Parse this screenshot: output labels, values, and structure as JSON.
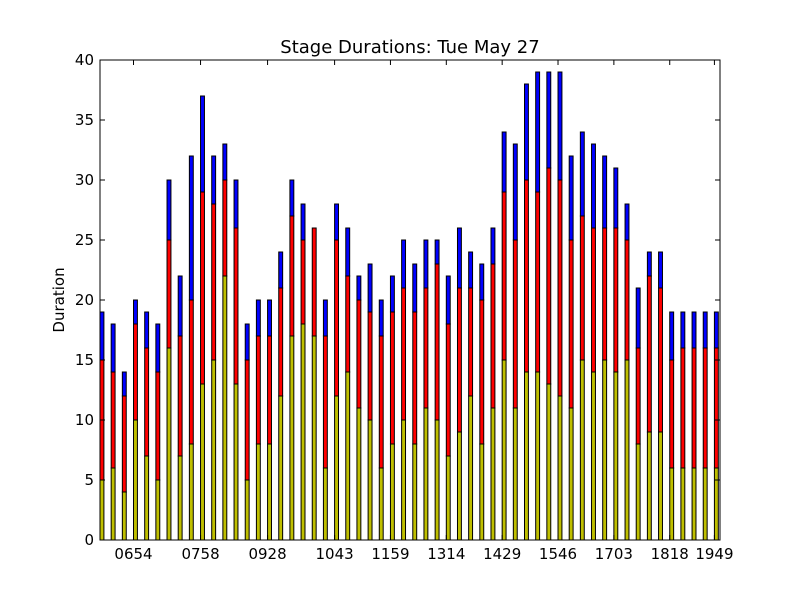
{
  "chart_data": {
    "type": "bar",
    "stacked": true,
    "title": "Stage Durations: Tue May 27",
    "xlabel": "",
    "ylabel": "Duration",
    "ylim": [
      0,
      40
    ],
    "yticks": [
      0,
      5,
      10,
      15,
      20,
      25,
      30,
      35,
      40
    ],
    "xtick_labels": [
      "0654",
      "0758",
      "0928",
      "1043",
      "1159",
      "1314",
      "1429",
      "1546",
      "1703",
      "1818",
      "1949"
    ],
    "xtick_positions": [
      3,
      9,
      15,
      21,
      26,
      31,
      36,
      41,
      46,
      51,
      55
    ],
    "bar_count": 56,
    "grid": false,
    "legend": "none",
    "series": [
      {
        "color": "#bfbf00",
        "values": [
          5,
          6,
          4,
          10,
          7,
          5,
          16,
          7,
          8,
          13,
          15,
          22,
          13,
          5,
          8,
          8,
          12,
          17,
          18,
          17,
          6,
          12,
          14,
          11,
          10,
          6,
          8,
          10,
          8,
          11,
          10,
          7,
          9,
          12,
          8,
          11,
          15,
          11,
          14,
          14,
          13,
          12,
          11,
          15,
          14,
          15,
          14,
          15,
          8,
          9,
          9,
          6,
          6,
          6,
          6,
          6
        ]
      },
      {
        "color": "#ff0000",
        "values": [
          10,
          8,
          8,
          8,
          9,
          9,
          9,
          10,
          12,
          16,
          13,
          8,
          13,
          10,
          9,
          9,
          9,
          10,
          7,
          9,
          11,
          13,
          8,
          9,
          9,
          11,
          11,
          11,
          11,
          10,
          13,
          11,
          12,
          9,
          12,
          12,
          14,
          14,
          16,
          15,
          18,
          18,
          14,
          12,
          12,
          11,
          12,
          10,
          8,
          13,
          12,
          9,
          10,
          10,
          10,
          10
        ]
      },
      {
        "color": "#0000ff",
        "values": [
          4,
          4,
          2,
          2,
          3,
          4,
          5,
          5,
          12,
          8,
          4,
          3,
          4,
          3,
          3,
          3,
          3,
          3,
          3,
          0,
          3,
          3,
          4,
          2,
          4,
          3,
          3,
          4,
          4,
          4,
          2,
          4,
          5,
          3,
          3,
          3,
          5,
          8,
          8,
          10,
          8,
          9,
          7,
          7,
          7,
          6,
          5,
          3,
          5,
          2,
          3,
          4,
          3,
          3,
          3,
          3
        ]
      }
    ]
  }
}
